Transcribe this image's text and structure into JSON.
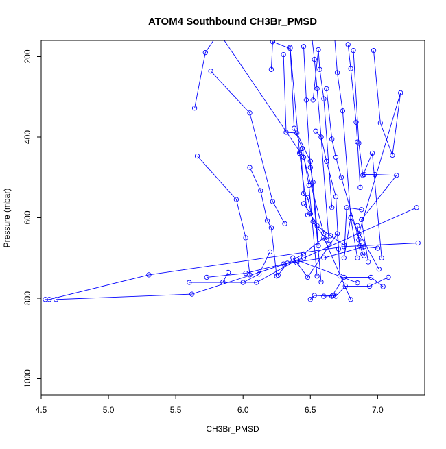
{
  "chart_data": {
    "type": "line",
    "title": "ATOM4 Southbound CH3Br_PMSD",
    "xlabel": "CH3Br_PMSD",
    "ylabel": "Pressure (mbar)",
    "xlim": [
      4.5,
      7.35
    ],
    "ylim": [
      1040,
      160
    ],
    "y_reversed": true,
    "grid": false,
    "series_color": "#0000ff",
    "marker": "open-circle",
    "x_ticks": [
      4.5,
      5.0,
      5.5,
      6.0,
      6.5,
      7.0
    ],
    "x_tick_labels": [
      "4.5",
      "5.0",
      "5.5",
      "6.0",
      "6.5",
      "7.0"
    ],
    "y_ticks": [
      200,
      400,
      600,
      800,
      1000
    ],
    "y_tick_labels": [
      "200",
      "400",
      "600",
      "800",
      "1000"
    ],
    "series": [
      {
        "x": [
          4.53,
          4.56,
          5.3,
          6.75,
          7.3
        ],
        "y": [
          803,
          803,
          742,
          672,
          663
        ]
      },
      {
        "x": [
          4.61,
          5.62,
          6.45,
          7.29
        ],
        "y": [
          803,
          790,
          700,
          575
        ]
      },
      {
        "x": [
          5.6,
          6.0,
          6.12,
          6.2
        ],
        "y": [
          761,
          761,
          740,
          685
        ]
      },
      {
        "x": [
          5.73,
          6.02,
          6.3,
          6.6,
          6.9,
          7.0
        ],
        "y": [
          748,
          738,
          715,
          700,
          672,
          676
        ]
      },
      {
        "x": [
          5.89,
          5.85,
          6.1,
          6.4,
          6.85
        ],
        "y": [
          736,
          760,
          761,
          705,
          762
        ]
      },
      {
        "x": [
          6.26,
          6.33,
          6.45,
          6.6,
          6.8
        ],
        "y": [
          743,
          713,
          690,
          650,
          803
        ]
      },
      {
        "x": [
          6.5,
          6.53,
          6.66,
          6.75,
          6.95,
          7.04
        ],
        "y": [
          803,
          793,
          795,
          748,
          748,
          771
        ]
      },
      {
        "x": [
          6.6,
          6.67,
          6.69,
          6.76,
          6.94,
          7.08
        ],
        "y": [
          795,
          793,
          795,
          770,
          770,
          748
        ]
      },
      {
        "x": [
          5.64,
          5.72,
          5.82,
          6.45,
          6.6
        ],
        "y": [
          328,
          190,
          140,
          450,
          640
        ]
      },
      {
        "x": [
          5.66,
          5.95,
          6.02,
          6.05
        ],
        "y": [
          447,
          555,
          650,
          742
        ]
      },
      {
        "x": [
          5.76,
          6.05,
          6.22,
          6.31
        ],
        "y": [
          236,
          340,
          560,
          615
        ]
      },
      {
        "x": [
          6.05,
          6.13,
          6.18,
          6.21,
          6.25
        ],
        "y": [
          475,
          533,
          608,
          625,
          745
        ]
      },
      {
        "x": [
          6.21,
          6.22,
          6.35,
          6.42,
          6.48
        ],
        "y": [
          232,
          163,
          180,
          440,
          593
        ]
      },
      {
        "x": [
          6.3,
          6.32,
          6.4,
          6.5,
          6.58
        ],
        "y": [
          195,
          388,
          390,
          460,
          760
        ]
      },
      {
        "x": [
          6.35,
          6.38,
          6.44,
          6.49,
          6.55
        ],
        "y": [
          177,
          378,
          428,
          520,
          745
        ]
      },
      {
        "x": [
          6.45,
          6.47,
          6.5,
          6.52,
          6.56
        ],
        "y": [
          175,
          308,
          475,
          512,
          670
        ]
      },
      {
        "x": [
          6.51,
          6.53,
          6.55,
          6.58,
          6.64
        ],
        "y": [
          147,
          207,
          280,
          400,
          666
        ]
      },
      {
        "x": [
          6.52,
          6.56,
          6.57,
          6.6,
          6.66
        ],
        "y": [
          308,
          183,
          232,
          305,
          575
        ]
      },
      {
        "x": [
          6.54,
          6.58,
          6.62,
          6.69,
          6.72
        ],
        "y": [
          385,
          400,
          460,
          548,
          745
        ]
      },
      {
        "x": [
          6.62,
          6.66,
          6.69,
          6.73,
          6.88
        ],
        "y": [
          280,
          405,
          450,
          500,
          675
        ]
      },
      {
        "x": [
          6.68,
          6.7,
          6.74,
          6.8,
          6.85
        ],
        "y": [
          150,
          240,
          335,
          600,
          700
        ]
      },
      {
        "x": [
          6.78,
          6.8,
          6.84,
          6.85,
          6.87
        ],
        "y": [
          170,
          230,
          363,
          412,
          525
        ]
      },
      {
        "x": [
          6.82,
          6.86,
          6.89,
          6.96,
          7.03
        ],
        "y": [
          185,
          415,
          495,
          440,
          700
        ]
      },
      {
        "x": [
          6.97,
          7.02,
          7.11,
          7.17,
          6.86
        ],
        "y": [
          185,
          365,
          445,
          290,
          640
        ]
      },
      {
        "x": [
          6.9,
          6.98,
          7.14,
          6.88,
          6.93
        ],
        "y": [
          493,
          493,
          495,
          605,
          710
        ]
      },
      {
        "x": [
          6.88,
          6.77,
          6.75,
          6.8,
          7.01
        ],
        "y": [
          580,
          575,
          700,
          600,
          728
        ]
      },
      {
        "x": [
          6.43,
          6.45,
          6.48,
          6.52,
          6.62
        ],
        "y": [
          438,
          540,
          550,
          610,
          655
        ]
      },
      {
        "x": [
          6.37,
          6.4,
          6.48,
          6.7,
          6.71
        ],
        "y": [
          700,
          712,
          748,
          640,
          678
        ]
      },
      {
        "x": [
          6.45,
          6.5,
          6.55,
          6.65,
          6.75
        ],
        "y": [
          565,
          590,
          620,
          645,
          668
        ]
      },
      {
        "x": [
          6.85,
          6.86,
          6.87,
          6.89,
          6.9
        ],
        "y": [
          620,
          655,
          670,
          690,
          695
        ]
      }
    ]
  }
}
